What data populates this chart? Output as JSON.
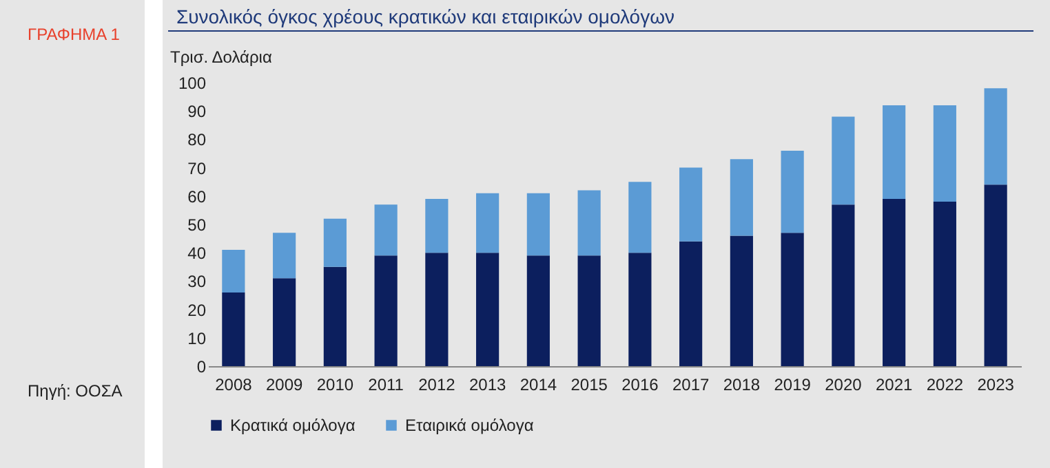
{
  "chart_data": {
    "type": "bar",
    "title": "Συνολικός όγκος χρέους κρατικών και εταιρικών ομολόγων",
    "ylabel": "Τρισ. Δολάρια",
    "annotations": [
      "ΓΡΑΦΗΜΑ 1",
      "Πηγή: ΟΟΣΑ"
    ],
    "categories": [
      "2008",
      "2009",
      "2010",
      "2011",
      "2012",
      "2013",
      "2014",
      "2015",
      "2016",
      "2017",
      "2018",
      "2019",
      "2020",
      "2021",
      "2022",
      "2023"
    ],
    "stacked": true,
    "series": [
      {
        "name": "Κρατικά ομόλογα",
        "color": "#0c1f5e",
        "values": [
          26,
          31,
          35,
          39,
          40,
          40,
          39,
          39,
          40,
          44,
          46,
          47,
          57,
          59,
          58,
          64
        ]
      },
      {
        "name": "Εταιρικά ομόλογα",
        "color": "#5b9bd5",
        "values": [
          15,
          16,
          17,
          18,
          19,
          21,
          22,
          23,
          25,
          26,
          27,
          29,
          31,
          33,
          34,
          34
        ]
      }
    ],
    "ylim": [
      0,
      100
    ],
    "yticks": [
      0,
      10,
      20,
      30,
      40,
      50,
      60,
      70,
      80,
      90,
      100
    ],
    "grid": false,
    "legend": "bottom"
  }
}
